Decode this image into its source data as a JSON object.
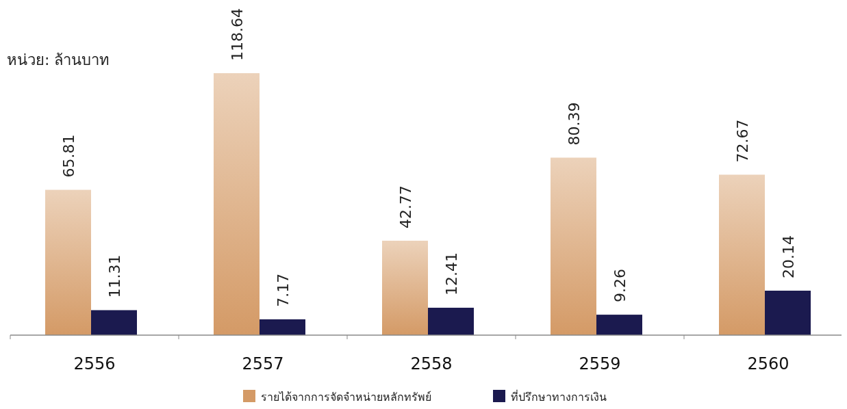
{
  "chart_data": {
    "type": "bar",
    "ylabel": "หน่วย: ล้านบาท",
    "categories": [
      "2556",
      "2557",
      "2558",
      "2559",
      "2560"
    ],
    "series": [
      {
        "name": "รายได้จากการจัดจำหน่ายหลักทรัพย์",
        "color": "#d49a66",
        "values": [
          65.81,
          118.64,
          42.77,
          80.39,
          72.67
        ]
      },
      {
        "name": "ที่ปรึกษาทางการเงิน",
        "color": "#1b1a4f",
        "values": [
          11.31,
          7.17,
          12.41,
          9.26,
          20.14
        ]
      }
    ],
    "data_labels": true,
    "legend": "bottom"
  }
}
